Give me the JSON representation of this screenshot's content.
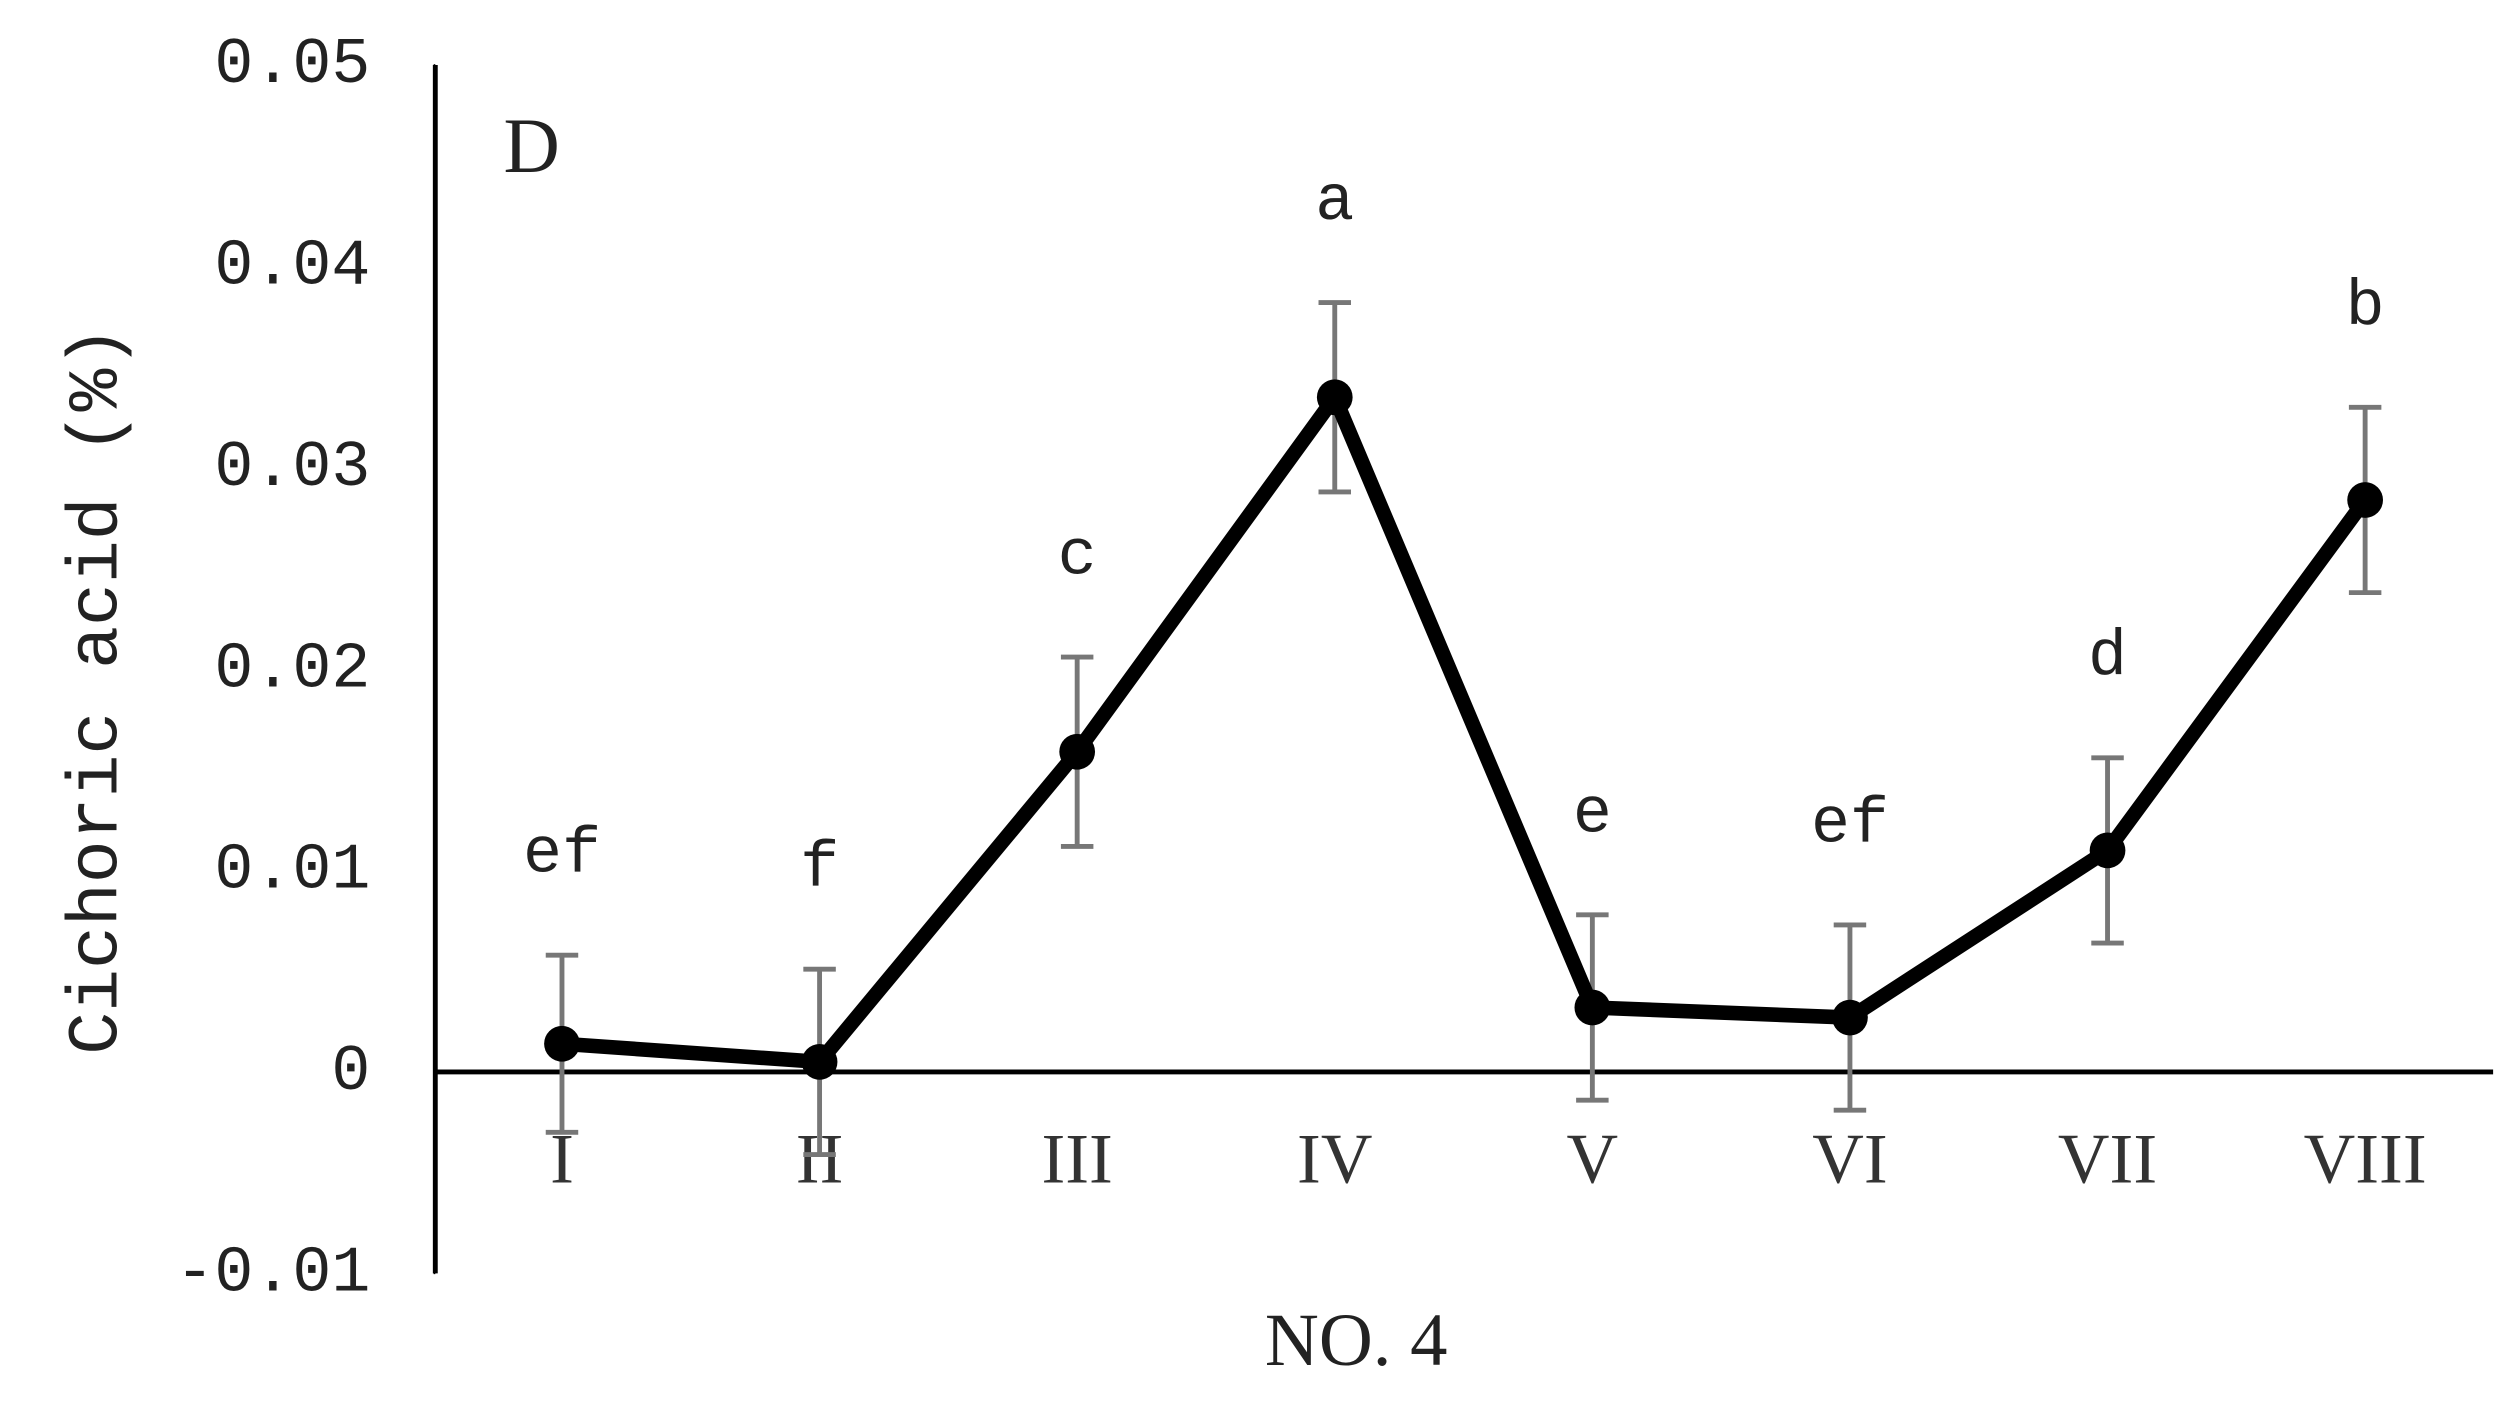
{
  "chart_data": {
    "type": "line",
    "panel_label": "D",
    "y_label": "Cichoric acid (%)",
    "x_label": "NO. 4",
    "categories": [
      "I",
      "II",
      "III",
      "IV",
      "V",
      "VI",
      "VII",
      "VIII"
    ],
    "values": [
      0.0014,
      0.0005,
      0.0159,
      0.0335,
      0.0032,
      0.0027,
      0.011,
      0.0284
    ],
    "errors": [
      0.0044,
      0.0046,
      0.0047,
      0.0047,
      0.0046,
      0.0046,
      0.0046,
      0.0046
    ],
    "significance_labels": [
      "ef",
      "f",
      "c",
      "a",
      "e",
      "ef",
      "d",
      "b"
    ],
    "color": "#000000",
    "error_color": "#777777",
    "ylim": [
      -0.01,
      0.05
    ],
    "yticks": [
      -0.01,
      0,
      0.01,
      0.02,
      0.03,
      0.04,
      0.05
    ]
  }
}
